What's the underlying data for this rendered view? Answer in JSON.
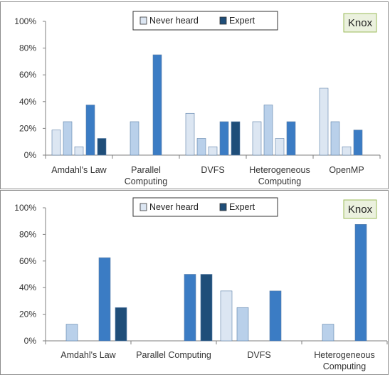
{
  "chart_data": [
    {
      "type": "bar",
      "title": "",
      "xlabel": "",
      "ylabel": "",
      "badge": "Knox",
      "ylim": [
        0,
        100
      ],
      "yticks": [
        "0%",
        "20%",
        "40%",
        "60%",
        "80%",
        "100%"
      ],
      "legend": {
        "placement": "top-center",
        "entries": [
          "Never heard",
          "Expert"
        ]
      },
      "categories": [
        {
          "lines": [
            "Amdahl's Law"
          ]
        },
        {
          "lines": [
            "Parallel",
            "Computing"
          ]
        },
        {
          "lines": [
            "DVFS"
          ]
        },
        {
          "lines": [
            "Heterogeneous",
            "Computing"
          ]
        },
        {
          "lines": [
            "OpenMP"
          ]
        }
      ],
      "series": [
        {
          "name": "Never heard",
          "color": "#dce6f2",
          "values": [
            18.75,
            0,
            31.25,
            25,
            50
          ]
        },
        {
          "color": "#b9d0ea",
          "values": [
            25,
            25,
            12.5,
            37.5,
            25
          ]
        },
        {
          "color": "#dce6f2",
          "values": [
            6.25,
            0,
            6.25,
            12.5,
            6.25
          ]
        },
        {
          "color": "#3b7cc4",
          "values": [
            37.5,
            75,
            25,
            25,
            18.75
          ]
        },
        {
          "name": "Expert",
          "color": "#1f4e79",
          "values": [
            12.5,
            0,
            25,
            0,
            0
          ]
        }
      ],
      "grid": false
    },
    {
      "type": "bar",
      "title": "",
      "xlabel": "",
      "ylabel": "",
      "badge": "Knox",
      "ylim": [
        0,
        100
      ],
      "yticks": [
        "0%",
        "20%",
        "40%",
        "60%",
        "80%",
        "100%"
      ],
      "legend": {
        "placement": "top-center",
        "entries": [
          "Never heard",
          "Expert"
        ]
      },
      "categories": [
        {
          "lines": [
            "Amdahl's Law"
          ]
        },
        {
          "lines": [
            "Parallel Computing"
          ]
        },
        {
          "lines": [
            "DVFS"
          ]
        },
        {
          "lines": [
            "Heterogeneous",
            "Computing"
          ]
        }
      ],
      "series": [
        {
          "name": "Never heard",
          "color": "#dce6f2",
          "values": [
            0,
            0,
            37.5,
            0
          ]
        },
        {
          "color": "#b9d0ea",
          "values": [
            12.5,
            0,
            25,
            12.5
          ]
        },
        {
          "color": "#dce6f2",
          "values": [
            0,
            0,
            0,
            0
          ]
        },
        {
          "color": "#3b7cc4",
          "values": [
            62.5,
            50,
            37.5,
            87.5
          ]
        },
        {
          "name": "Expert",
          "color": "#1f4e79",
          "values": [
            25,
            50,
            0,
            0
          ]
        }
      ],
      "grid": false
    }
  ]
}
